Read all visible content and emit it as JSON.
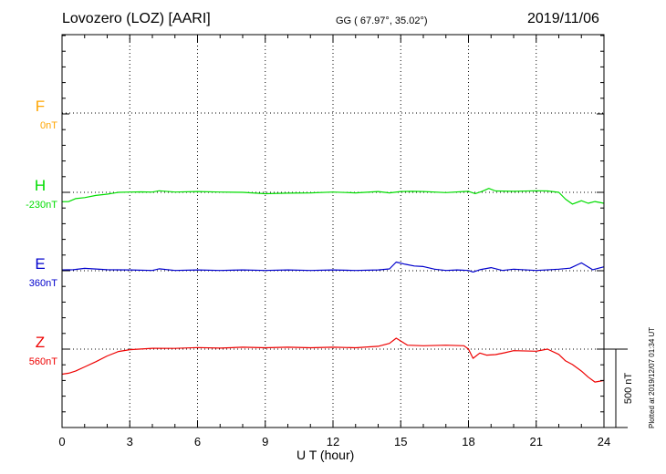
{
  "header": {
    "station": "Lovozero (LOZ)  [AARI]",
    "coords": "GG ( 67.97°,  35.02°)",
    "date": "2019/11/06"
  },
  "footer": {
    "xlabel": "U T (hour)",
    "plotted": "Plotted at 2019/12/07 01:34 UT",
    "scale": "500 nT"
  },
  "chart_data": {
    "type": "line",
    "xlabel": "U T (hour)",
    "xlim": [
      0,
      24
    ],
    "xticks": [
      0,
      3,
      6,
      9,
      12,
      15,
      18,
      21,
      24
    ],
    "grid": true,
    "scale_bar_nT": 500,
    "series": [
      {
        "name": "F",
        "baseline_label": "0nT",
        "color": "#ffa500",
        "x": [],
        "y": []
      },
      {
        "name": "H",
        "baseline_label": "-230nT",
        "color": "#00dd00",
        "x": [
          0,
          0.3,
          0.6,
          1,
          1.5,
          2,
          2.5,
          3,
          3.5,
          4,
          4.3,
          5,
          6,
          7,
          8,
          9,
          10,
          11,
          12,
          13,
          14,
          14.5,
          15,
          15.5,
          16,
          17,
          17.8,
          18,
          18.3,
          18.6,
          18.9,
          19.2,
          19.5,
          20,
          21,
          21.5,
          22,
          22.3,
          22.6,
          23,
          23.3,
          23.6,
          24
        ],
        "y": [
          -60,
          -55,
          -40,
          -30,
          -20,
          -8,
          0,
          5,
          3,
          5,
          10,
          5,
          5,
          5,
          0,
          -5,
          -5,
          0,
          2,
          0,
          5,
          0,
          5,
          10,
          5,
          2,
          5,
          10,
          -8,
          10,
          25,
          12,
          8,
          10,
          10,
          12,
          0,
          -40,
          -75,
          -50,
          -70,
          -55,
          -70
        ]
      },
      {
        "name": "E",
        "baseline_label": "360nT",
        "color": "#0000cc",
        "x": [
          0,
          0.5,
          1,
          2,
          3,
          4,
          4.3,
          5,
          6,
          7,
          8,
          9,
          10,
          11,
          12,
          13,
          14,
          14.5,
          14.8,
          15.2,
          15.6,
          16,
          16.5,
          17,
          17.5,
          18,
          18.2,
          18.5,
          19,
          19.5,
          20,
          21,
          22,
          22.5,
          23,
          23.5,
          24
        ],
        "y": [
          5,
          10,
          15,
          10,
          5,
          5,
          12,
          5,
          5,
          5,
          5,
          5,
          5,
          5,
          5,
          5,
          5,
          15,
          55,
          45,
          30,
          30,
          10,
          5,
          5,
          5,
          -8,
          10,
          20,
          5,
          10,
          5,
          10,
          20,
          50,
          10,
          25
        ]
      },
      {
        "name": "Z",
        "baseline_label": "560nT",
        "color": "#ee0000",
        "x": [
          0,
          0.3,
          0.6,
          1,
          1.5,
          2,
          2.5,
          3,
          4,
          5,
          6,
          7,
          8,
          9,
          10,
          11,
          12,
          13,
          14,
          14.5,
          14.8,
          15,
          15.3,
          16,
          17,
          17.8,
          18,
          18.2,
          18.5,
          18.8,
          19.2,
          19.6,
          20,
          21,
          21.5,
          22,
          22.3,
          22.6,
          23,
          23.3,
          23.6,
          24
        ],
        "y": [
          -160,
          -150,
          -140,
          -110,
          -80,
          -40,
          -15,
          0,
          5,
          8,
          10,
          10,
          12,
          12,
          12,
          12,
          12,
          12,
          18,
          40,
          70,
          55,
          25,
          25,
          25,
          25,
          0,
          -55,
          -25,
          -35,
          -35,
          -20,
          -10,
          -10,
          0,
          -30,
          -75,
          -95,
          -140,
          -175,
          -210,
          -200
        ]
      }
    ]
  }
}
